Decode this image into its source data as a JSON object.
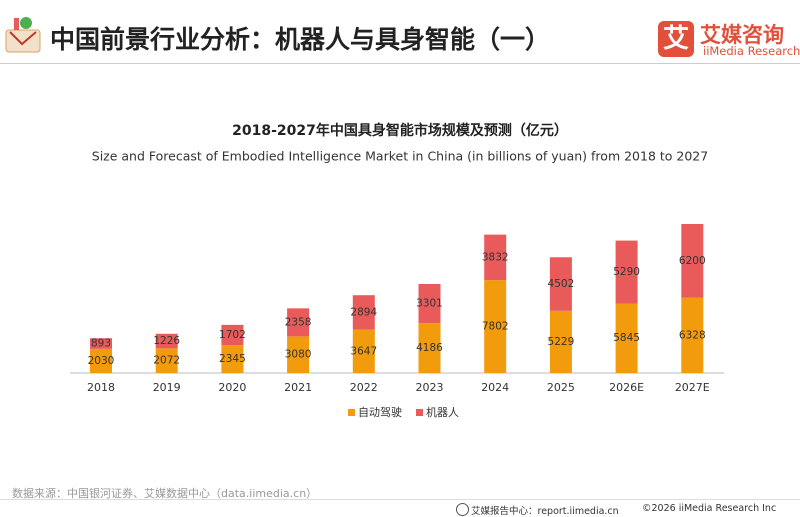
{
  "header": {
    "title": "中国前景行业分析：机器人与具身智能（一）",
    "logo": "艾媒咨询",
    "logo_mark": "艾",
    "logo_en": "iiMedia Research"
  },
  "chart_data": {
    "type": "stacked_bar",
    "title": "2018-2027年中国具身智能市场规模及预测（亿元）",
    "subtitle": "Size and Forecast of Embodied Intelligence Market in China (in billions of yuan) from 2018 to 2027",
    "categories": [
      "2018",
      "2019",
      "2020",
      "2021",
      "2022",
      "2023",
      "2024",
      "2025",
      "2026E",
      "2027E"
    ],
    "series": [
      {
        "name": "自动驾驶",
        "color": "#f29b0c",
        "values": [
          2030,
          2072,
          2345,
          3080,
          3647,
          4186,
          7802,
          5229,
          5845,
          6328
        ]
      },
      {
        "name": "机器人",
        "color": "#e95b5b",
        "values": [
          893,
          1226,
          1702,
          2358,
          2894,
          3301,
          3832,
          4502,
          5290,
          6200
        ]
      }
    ],
    "legend": "bottom"
  },
  "source": "数据来源：中国银河证券、艾媒数据中心（data.iimedia.cn）",
  "footer": {
    "site": "艾媒报告中心：report.iimedia.cn",
    "copyright": "©2026  iiMedia Research  Inc"
  }
}
